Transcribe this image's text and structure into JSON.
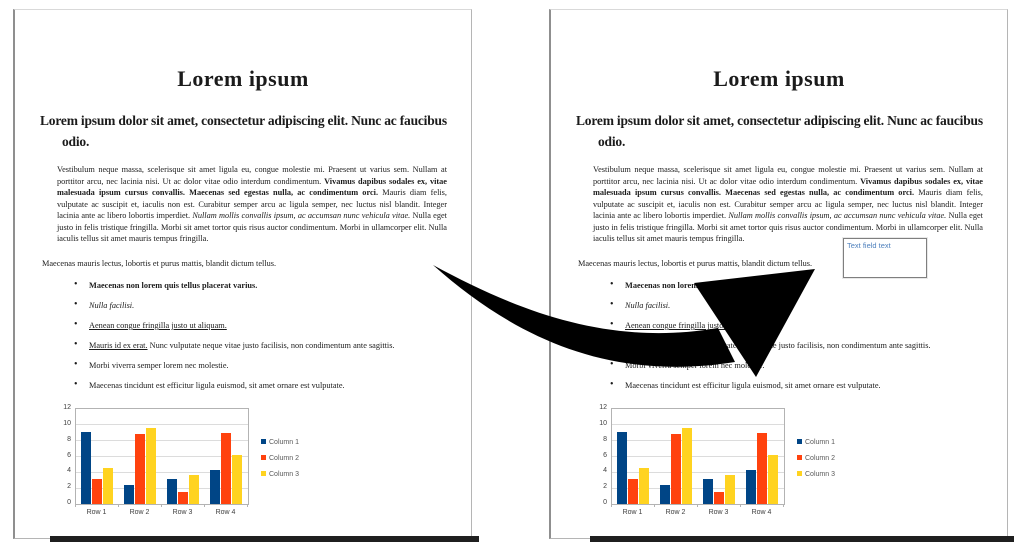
{
  "document": {
    "title": "Lorem ipsum",
    "heading": "Lorem ipsum dolor sit amet, consectetur adipiscing elit. Nunc ac faucibus odio.",
    "paragraph1_segments": [
      {
        "style": "normal",
        "text": "Vestibulum neque massa, scelerisque sit amet ligula eu, congue molestie mi. Praesent ut varius sem. Nullam at porttitor arcu, nec lacinia nisi. Ut ac dolor vitae odio interdum condimentum. "
      },
      {
        "style": "bold",
        "text": "Vivamus dapibus sodales ex, vitae malesuada ipsum cursus convallis. Maecenas sed egestas nulla, ac condimentum orci."
      },
      {
        "style": "normal",
        "text": " Mauris diam felis, vulputate ac suscipit et, iaculis non est. Curabitur semper arcu ac ligula semper, nec luctus nisl blandit. Integer lacinia ante ac libero lobortis imperdiet. "
      },
      {
        "style": "italic",
        "text": "Nullam mollis convallis ipsum, ac accumsan nunc vehicula vitae."
      },
      {
        "style": "normal",
        "text": " Nulla eget justo in felis tristique fringilla. Morbi sit amet tortor quis risus auctor condimentum. Morbi in ullamcorper elit. Nulla iaculis tellus sit amet mauris tempus fringilla."
      }
    ],
    "paragraph2": "Maecenas mauris lectus, lobortis et purus mattis, blandit dictum tellus.",
    "bullets": [
      {
        "segments": [
          {
            "style": "bold",
            "text": "Maecenas non lorem quis tellus placerat varius."
          }
        ]
      },
      {
        "segments": [
          {
            "style": "italic",
            "text": "Nulla facilisi."
          }
        ]
      },
      {
        "segments": [
          {
            "style": "underline",
            "text": "Aenean congue fringilla justo ut aliquam."
          }
        ]
      },
      {
        "segments": [
          {
            "style": "underline",
            "text": "Mauris id ex erat."
          },
          {
            "style": "normal",
            "text": " Nunc vulputate neque vitae justo facilisis, non condimentum ante sagittis."
          }
        ]
      },
      {
        "segments": [
          {
            "style": "normal",
            "text": "Morbi viverra semper lorem nec molestie."
          }
        ]
      },
      {
        "segments": [
          {
            "style": "normal",
            "text": "Maecenas tincidunt est efficitur ligula euismod, sit amet ornare est vulputate."
          }
        ]
      }
    ]
  },
  "text_field": {
    "value": "Text field text",
    "text_color": "#4f81bd",
    "border_color": "#7f7f7f"
  },
  "chart_data": {
    "type": "bar",
    "title": "",
    "xlabel": "",
    "ylabel": "",
    "categories": [
      "Row 1",
      "Row 2",
      "Row 3",
      "Row 4"
    ],
    "series": [
      {
        "name": "Column 1",
        "color": "#004586",
        "values": [
          9.1,
          2.4,
          3.1,
          4.3
        ]
      },
      {
        "name": "Column 2",
        "color": "#ff420e",
        "values": [
          3.2,
          8.8,
          1.5,
          9.0
        ]
      },
      {
        "name": "Column 3",
        "color": "#ffd320",
        "values": [
          4.5,
          9.6,
          3.7,
          6.2
        ]
      }
    ],
    "ylim": [
      0,
      12
    ],
    "yticks": [
      0,
      2,
      4,
      6,
      8,
      10,
      12
    ],
    "grid": true,
    "legend_position": "right"
  },
  "arrow": {
    "color": "#000000"
  },
  "colors": {
    "page_border": "#b5b5b5",
    "page_shadow": "#1f1f1f",
    "grid_line": "#dcdcdc",
    "axis_line": "#b3b3b3",
    "chart_label": "#404040",
    "legend_label": "#595959"
  }
}
